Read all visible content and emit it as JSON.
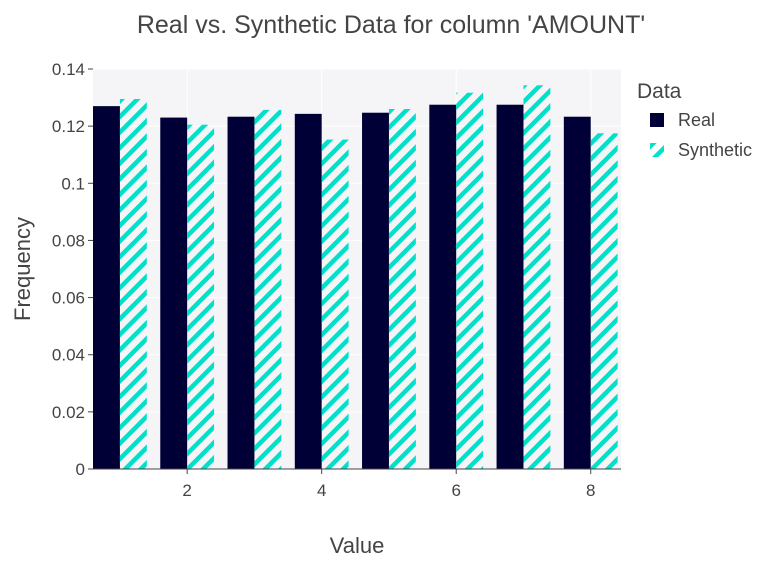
{
  "chart_data": {
    "type": "bar",
    "title": "Real vs. Synthetic Data for column 'AMOUNT'",
    "xlabel": "Value",
    "ylabel": "Frequency",
    "x": [
      1,
      2,
      3,
      4,
      5,
      6,
      7,
      8
    ],
    "x_ticks": [
      "2",
      "4",
      "6",
      "8"
    ],
    "x_tick_values": [
      2,
      4,
      6,
      8
    ],
    "xlim": [
      0.6,
      8.45
    ],
    "ylim": [
      0,
      0.14
    ],
    "y_ticks": [
      "0",
      "0.02",
      "0.04",
      "0.06",
      "0.08",
      "0.1",
      "0.12",
      "0.14"
    ],
    "y_tick_values": [
      0,
      0.02,
      0.04,
      0.06,
      0.08,
      0.1,
      0.12,
      0.14
    ],
    "grid": true,
    "legend": {
      "title": "Data",
      "placement": "right"
    },
    "series": [
      {
        "name": "Real",
        "color": "#000036",
        "pattern": "solid",
        "values": [
          0.127,
          0.123,
          0.1233,
          0.1243,
          0.1247,
          0.1275,
          0.1275,
          0.1233
        ]
      },
      {
        "name": "Synthetic",
        "color": "#01e0c9",
        "pattern": "diagonal-stripes",
        "values": [
          0.1295,
          0.1205,
          0.1257,
          0.1153,
          0.126,
          0.1317,
          0.1343,
          0.1175
        ]
      }
    ]
  }
}
